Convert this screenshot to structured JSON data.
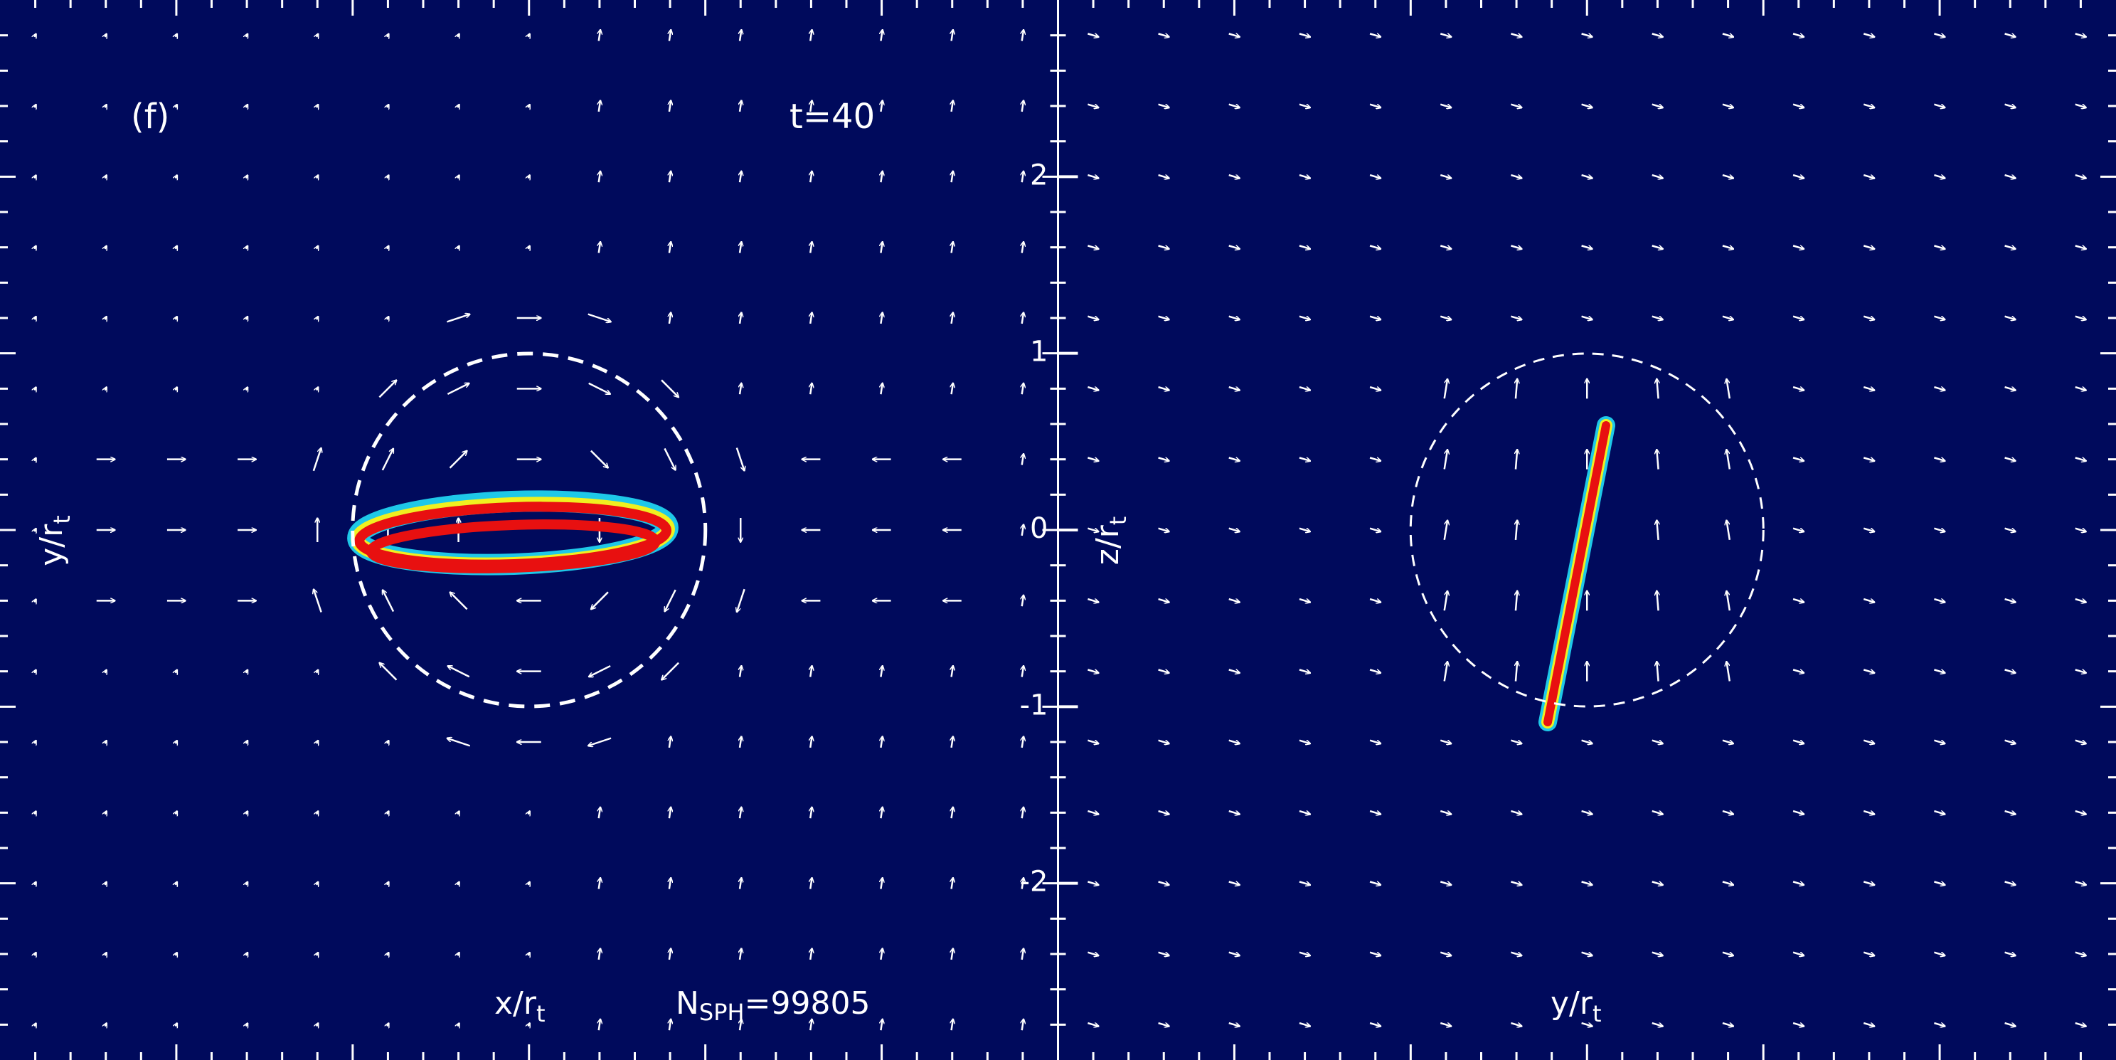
{
  "chart_data": [
    {
      "type": "density-map",
      "panel_label": "(f)",
      "annotation": "t=40",
      "particle_count": {
        "text": "N",
        "sub": "SPH",
        "rest": "=99805"
      },
      "x_label": {
        "text": "x/r",
        "sub": "t"
      },
      "y_label": {
        "text": "y/r",
        "sub": "t"
      },
      "xlim": [
        -3,
        3
      ],
      "ylim": [
        -3,
        3
      ],
      "background": "#000a5c"
    },
    {
      "type": "density-map",
      "x_label": {
        "text": "y/r",
        "sub": "t"
      },
      "y_label": {
        "text": "z/r",
        "sub": "t"
      },
      "xlim": [
        -3,
        3
      ],
      "ylim": [
        -3,
        3
      ],
      "yticks": [
        -2,
        -1,
        0,
        1,
        2
      ],
      "background": "#000a5c"
    }
  ]
}
